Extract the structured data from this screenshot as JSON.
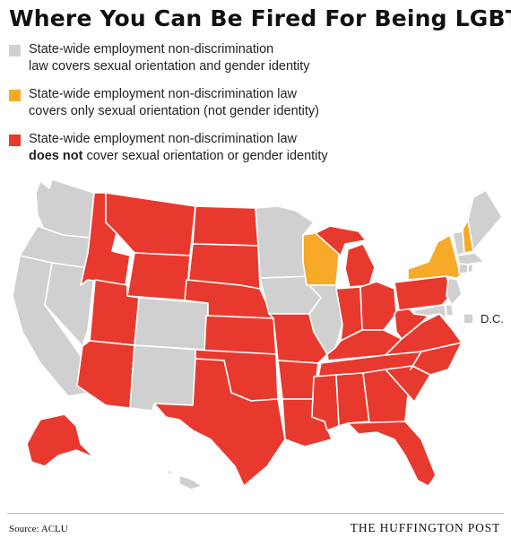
{
  "title": "Where You Can Be Fired For Being LGBT",
  "legend": {
    "gray": {
      "line1": "State-wide employment non-discrimination",
      "line2": "law covers sexual orientation and gender identity",
      "color": "#d0d0d0"
    },
    "orange": {
      "line1": "State-wide employment non-discrimination law",
      "line2": "covers only sexual orientation (not gender identity)",
      "color": "#f7a928"
    },
    "red": {
      "line1": "State-wide employment non-discrimination law",
      "line2_bold": "does not",
      "line2_rest": " cover sexual orientation or gender identity",
      "color": "#e8392e"
    }
  },
  "map": {
    "dc_label": "D.C.",
    "colors": {
      "full": "#d0d0d0",
      "partial": "#f7a928",
      "none": "#e8392e"
    },
    "categories": {
      "full": [
        "WA",
        "OR",
        "CA",
        "NV",
        "CO",
        "NM",
        "MN",
        "IA",
        "IL",
        "VT",
        "ME",
        "MA",
        "RI",
        "CT",
        "NJ",
        "DE",
        "MD",
        "HI",
        "DC"
      ],
      "partial": [
        "WI",
        "NY",
        "NH"
      ],
      "none": [
        "MT",
        "ID",
        "WY",
        "UT",
        "AZ",
        "ND",
        "SD",
        "NE",
        "KS",
        "OK",
        "TX",
        "MO",
        "AR",
        "LA",
        "MI",
        "IN",
        "OH",
        "KY",
        "TN",
        "MS",
        "AL",
        "GA",
        "FL",
        "SC",
        "NC",
        "VA",
        "WV",
        "PA",
        "AK"
      ]
    }
  },
  "footer": {
    "source": "Source: ACLU",
    "brand": "THE HUFFINGTON POST"
  }
}
